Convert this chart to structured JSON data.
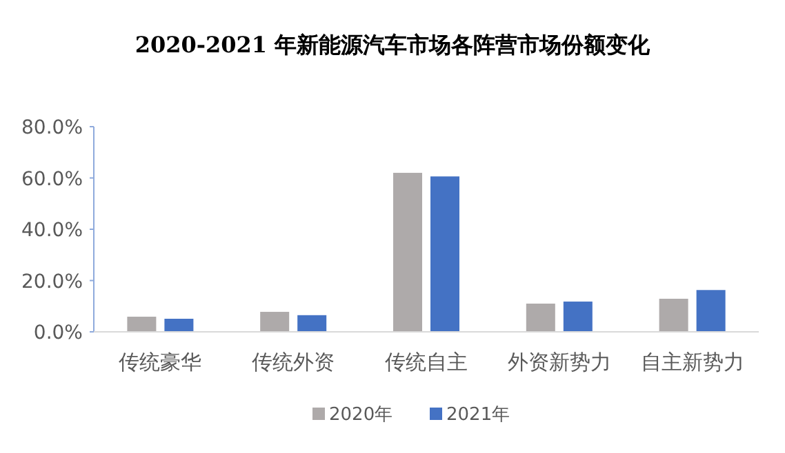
{
  "chart_data": {
    "type": "bar",
    "title": "2020-2021 年新能源汽车市场各阵营市场份额变化",
    "categories": [
      "传统豪华",
      "传统外资",
      "传统自主",
      "外资新势力",
      "自主新势力"
    ],
    "series": [
      {
        "name": "2020年",
        "color": "#aeaaaa",
        "values": [
          5.9,
          7.8,
          62.0,
          11.0,
          12.9
        ]
      },
      {
        "name": "2021年",
        "color": "#4472c4",
        "values": [
          5.1,
          6.5,
          60.6,
          11.8,
          16.3
        ]
      }
    ],
    "ylim": [
      0,
      80
    ],
    "yticks": [
      {
        "value": 0,
        "label": "0.0%"
      },
      {
        "value": 20,
        "label": "20.0%"
      },
      {
        "value": 40,
        "label": "40.0%"
      },
      {
        "value": 60,
        "label": "60.0%"
      },
      {
        "value": 80,
        "label": "80.0%"
      }
    ],
    "legend": "bottom"
  }
}
